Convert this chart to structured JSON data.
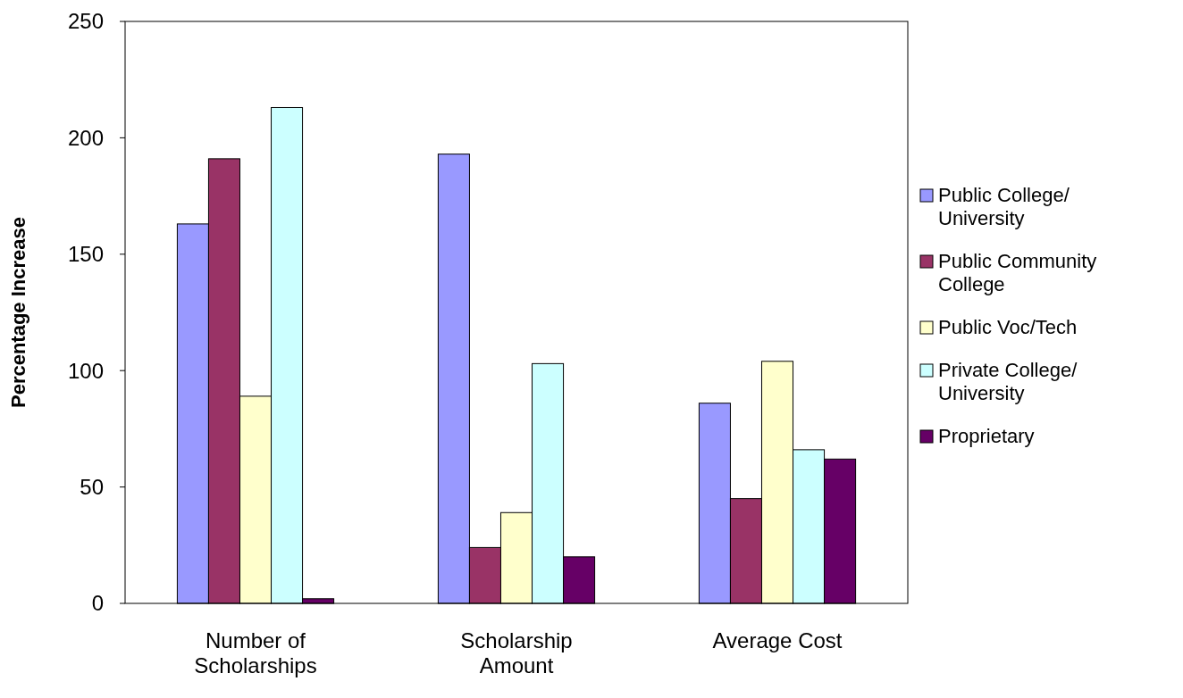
{
  "chart_data": {
    "type": "bar",
    "ylabel": "Percentage Increase",
    "categories": [
      "Number of Scholarships",
      "Scholarship Amount",
      "Average Cost"
    ],
    "series": [
      {
        "name": "Public College/ University",
        "color": "#9999ff",
        "values": [
          163,
          193,
          86
        ]
      },
      {
        "name": "Public Community College",
        "color": "#993366",
        "values": [
          191,
          24,
          45
        ]
      },
      {
        "name": "Public Voc/Tech",
        "color": "#ffffcc",
        "values": [
          89,
          39,
          104
        ]
      },
      {
        "name": "Private College/ University",
        "color": "#ccffff",
        "values": [
          213,
          103,
          66
        ]
      },
      {
        "name": "Proprietary",
        "color": "#660066",
        "values": [
          2,
          20,
          62
        ]
      }
    ],
    "ylim": [
      0,
      250
    ],
    "yticks": [
      0,
      50,
      100,
      150,
      200,
      250
    ],
    "grid": false,
    "legend": "right"
  }
}
